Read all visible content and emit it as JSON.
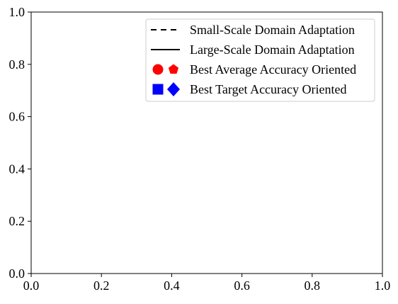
{
  "chart_data": {
    "type": "line",
    "title": "",
    "xlabel": "",
    "ylabel": "",
    "xlim": [
      0.0,
      1.0
    ],
    "ylim": [
      0.0,
      1.0
    ],
    "grid": false,
    "x_ticks": [
      "0.0",
      "0.2",
      "0.4",
      "0.6",
      "0.8",
      "1.0"
    ],
    "y_ticks": [
      "0.0",
      "0.2",
      "0.4",
      "0.6",
      "0.8",
      "1.0"
    ],
    "series": [],
    "legend": {
      "placement": "top-right",
      "entries": [
        {
          "label": "Small-Scale Domain Adaptation",
          "symbol": "dashed-line",
          "color": "#000000"
        },
        {
          "label": "Large-Scale Domain Adaptation",
          "symbol": "solid-line",
          "color": "#000000"
        },
        {
          "label": "Best Average Accuracy Oriented",
          "symbol": "circle-pentagon",
          "color": "#ff0000"
        },
        {
          "label": "Best Target Accuracy Oriented",
          "symbol": "square-diamond",
          "color": "#0000ff"
        }
      ]
    }
  }
}
